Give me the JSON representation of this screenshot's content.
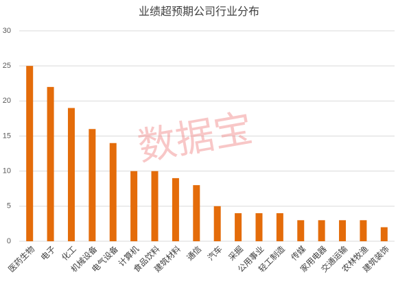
{
  "chart_data": {
    "type": "bar",
    "title": "业绩超预期公司行业分布",
    "categories": [
      "医药生物",
      "电子",
      "化工",
      "机械设备",
      "电气设备",
      "计算机",
      "食品饮料",
      "建筑材料",
      "通信",
      "汽车",
      "采掘",
      "公用事业",
      "轻工制造",
      "传媒",
      "家用电器",
      "交通运输",
      "农林牧渔",
      "建筑装饰"
    ],
    "values": [
      25,
      22,
      19,
      16,
      14,
      10,
      10,
      9,
      8,
      5,
      4,
      4,
      4,
      3,
      3,
      3,
      3,
      2
    ],
    "color": "#e46c0a",
    "ylim": [
      0,
      30
    ],
    "yticks": [
      0,
      5,
      10,
      15,
      20,
      25,
      30
    ],
    "grid": true,
    "watermark": "数据宝"
  }
}
